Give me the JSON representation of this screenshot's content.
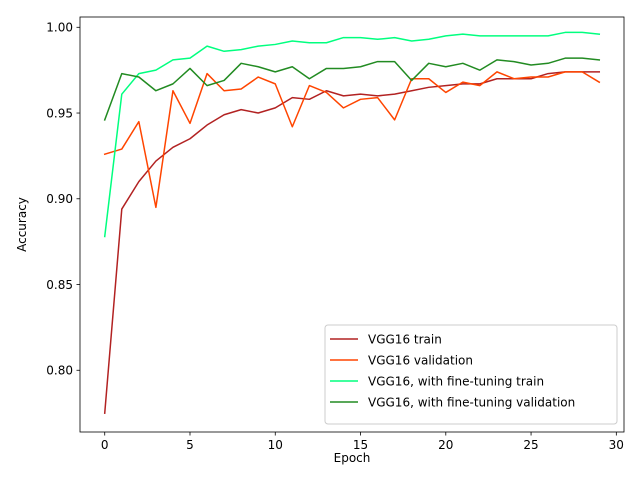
{
  "chart_data": {
    "type": "line",
    "title": "",
    "xlabel": "Epoch",
    "ylabel": "Accuracy",
    "xlim": [
      -1.45,
      30.45
    ],
    "ylim": [
      0.764,
      1.006
    ],
    "xticks": [
      0,
      5,
      10,
      15,
      20,
      25,
      30
    ],
    "xtick_labels": [
      "0",
      "5",
      "10",
      "15",
      "20",
      "25",
      "30"
    ],
    "yticks": [
      0.8,
      0.85,
      0.9,
      0.95,
      1.0
    ],
    "ytick_labels": [
      "0.80",
      "0.85",
      "0.90",
      "0.95",
      "1.00"
    ],
    "grid": false,
    "legend_position": "lower-right",
    "x": [
      0,
      1,
      2,
      3,
      4,
      5,
      6,
      7,
      8,
      9,
      10,
      11,
      12,
      13,
      14,
      15,
      16,
      17,
      18,
      19,
      20,
      21,
      22,
      23,
      24,
      25,
      26,
      27,
      28,
      29
    ],
    "series": [
      {
        "name": "VGG16 train",
        "color": "#b22222",
        "values": [
          0.775,
          0.894,
          0.91,
          0.922,
          0.93,
          0.935,
          0.943,
          0.949,
          0.952,
          0.95,
          0.953,
          0.959,
          0.958,
          0.963,
          0.96,
          0.961,
          0.96,
          0.961,
          0.963,
          0.965,
          0.966,
          0.967,
          0.967,
          0.97,
          0.97,
          0.97,
          0.973,
          0.974,
          0.974,
          0.974
        ]
      },
      {
        "name": "VGG16 validation",
        "color": "#ff4500",
        "values": [
          0.926,
          0.929,
          0.945,
          0.895,
          0.963,
          0.944,
          0.973,
          0.963,
          0.964,
          0.971,
          0.967,
          0.942,
          0.966,
          0.962,
          0.953,
          0.958,
          0.959,
          0.946,
          0.97,
          0.97,
          0.962,
          0.968,
          0.966,
          0.974,
          0.97,
          0.971,
          0.971,
          0.974,
          0.974,
          0.968
        ]
      },
      {
        "name": "VGG16, with fine-tuning train",
        "color": "#00ff7f",
        "values": [
          0.878,
          0.961,
          0.973,
          0.975,
          0.981,
          0.982,
          0.989,
          0.986,
          0.987,
          0.989,
          0.99,
          0.992,
          0.991,
          0.991,
          0.994,
          0.994,
          0.993,
          0.994,
          0.992,
          0.993,
          0.995,
          0.996,
          0.995,
          0.995,
          0.995,
          0.995,
          0.995,
          0.997,
          0.997,
          0.996
        ]
      },
      {
        "name": "VGG16, with fine-tuning validation",
        "color": "#228b22",
        "values": [
          0.946,
          0.973,
          0.971,
          0.963,
          0.967,
          0.976,
          0.966,
          0.969,
          0.979,
          0.977,
          0.974,
          0.977,
          0.97,
          0.976,
          0.976,
          0.977,
          0.98,
          0.98,
          0.969,
          0.979,
          0.977,
          0.979,
          0.975,
          0.981,
          0.98,
          0.978,
          0.979,
          0.982,
          0.982,
          0.981
        ]
      }
    ]
  }
}
